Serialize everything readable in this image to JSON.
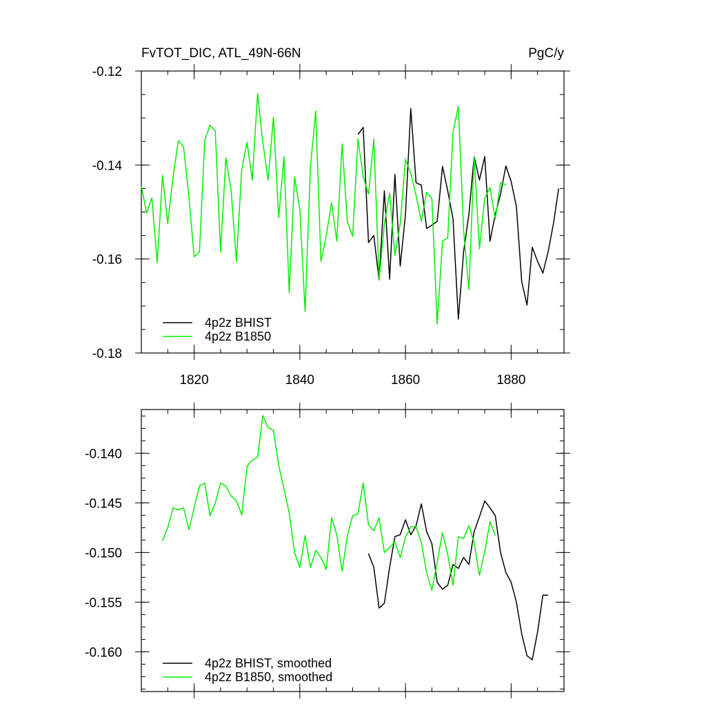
{
  "colors": {
    "bhist": "#000000",
    "b1850": "#00ee00"
  },
  "chart_data": [
    {
      "type": "line",
      "title": "FvTOT_DIC, ATL_49N-66N",
      "units": "PgC/y",
      "xlim": [
        1810,
        1890
      ],
      "ylim": [
        -0.18,
        -0.12
      ],
      "yticks": [
        "-0.12",
        "-0.14",
        "-0.16",
        "-0.18"
      ],
      "ytick_values": [
        -0.12,
        -0.14,
        -0.16,
        -0.18
      ],
      "xticks": [
        "1820",
        "1840",
        "1860",
        "1880"
      ],
      "xtick_values": [
        1820,
        1840,
        1860,
        1880
      ],
      "legend": "bottom-left",
      "series": [
        {
          "name": "4p2z BHIST",
          "color": "#000000",
          "x": [
            1851,
            1852,
            1853,
            1854,
            1855,
            1856,
            1857,
            1858,
            1859,
            1860,
            1861,
            1862,
            1863,
            1864,
            1865,
            1866,
            1867,
            1868,
            1869,
            1870,
            1871,
            1872,
            1873,
            1874,
            1875,
            1876,
            1877,
            1878,
            1879,
            1880,
            1881,
            1882,
            1883,
            1884,
            1885,
            1886,
            1887,
            1888,
            1889
          ],
          "y": [
            -0.1335,
            -0.132,
            -0.1565,
            -0.155,
            -0.1645,
            -0.1455,
            -0.1643,
            -0.142,
            -0.1615,
            -0.1505,
            -0.128,
            -0.1438,
            -0.1443,
            -0.1535,
            -0.1528,
            -0.152,
            -0.1403,
            -0.1455,
            -0.1515,
            -0.1728,
            -0.1585,
            -0.1505,
            -0.1382,
            -0.1432,
            -0.1382,
            -0.1562,
            -0.1505,
            -0.1462,
            -0.1402,
            -0.1435,
            -0.1488,
            -0.1648,
            -0.1698,
            -0.1575,
            -0.1605,
            -0.163,
            -0.1585,
            -0.1525,
            -0.145
          ]
        },
        {
          "name": "4p2z B1850",
          "color": "#00ee00",
          "x": [
            1810,
            1811,
            1812,
            1813,
            1814,
            1815,
            1816,
            1817,
            1818,
            1819,
            1820,
            1821,
            1822,
            1823,
            1824,
            1825,
            1826,
            1827,
            1828,
            1829,
            1830,
            1831,
            1832,
            1833,
            1834,
            1835,
            1836,
            1837,
            1838,
            1839,
            1840,
            1841,
            1842,
            1843,
            1844,
            1845,
            1846,
            1847,
            1848,
            1849,
            1850,
            1851,
            1852,
            1853,
            1854,
            1855,
            1856,
            1857,
            1858,
            1859,
            1860,
            1861,
            1862,
            1863,
            1864,
            1865,
            1866,
            1867,
            1868,
            1869,
            1870,
            1871,
            1872,
            1873,
            1874,
            1875,
            1876,
            1877,
            1878,
            1879
          ],
          "y": [
            -0.1445,
            -0.1502,
            -0.147,
            -0.1608,
            -0.1422,
            -0.1525,
            -0.1425,
            -0.1348,
            -0.1362,
            -0.1468,
            -0.1595,
            -0.1585,
            -0.1348,
            -0.1315,
            -0.1328,
            -0.1585,
            -0.1385,
            -0.1455,
            -0.1605,
            -0.141,
            -0.1352,
            -0.1432,
            -0.1248,
            -0.1352,
            -0.1432,
            -0.1298,
            -0.1512,
            -0.1382,
            -0.1672,
            -0.1425,
            -0.1495,
            -0.1712,
            -0.1405,
            -0.1285,
            -0.1605,
            -0.155,
            -0.148,
            -0.1562,
            -0.1355,
            -0.152,
            -0.1552,
            -0.1345,
            -0.1425,
            -0.1462,
            -0.1345,
            -0.1645,
            -0.1525,
            -0.146,
            -0.1592,
            -0.1525,
            -0.1388,
            -0.1418,
            -0.1465,
            -0.152,
            -0.1458,
            -0.1472,
            -0.1738,
            -0.1562,
            -0.1555,
            -0.133,
            -0.1275,
            -0.1538,
            -0.1665,
            -0.1382,
            -0.1578,
            -0.147,
            -0.1448,
            -0.1515,
            -0.1438,
            -0.1442
          ]
        }
      ]
    },
    {
      "type": "line",
      "xlim": [
        1810,
        1890
      ],
      "ylim": [
        -0.164,
        -0.1356
      ],
      "yticks": [
        "-0.140",
        "-0.145",
        "-0.150",
        "-0.155",
        "-0.160"
      ],
      "ytick_values": [
        -0.14,
        -0.145,
        -0.15,
        -0.155,
        -0.16
      ],
      "xticks": [
        "",
        "",
        "",
        ""
      ],
      "xtick_values": [
        1820,
        1840,
        1860,
        1880
      ],
      "legend": "bottom-left",
      "series": [
        {
          "name": "4p2z BHIST, smoothed",
          "color": "#000000",
          "x": [
            1853,
            1854,
            1855,
            1856,
            1857,
            1858,
            1859,
            1860,
            1861,
            1862,
            1863,
            1864,
            1865,
            1866,
            1867,
            1868,
            1869,
            1870,
            1871,
            1872,
            1873,
            1874,
            1875,
            1876,
            1877,
            1878,
            1879,
            1880,
            1881,
            1882,
            1883,
            1884,
            1885,
            1886,
            1887
          ],
          "y": [
            -0.1501,
            -0.1515,
            -0.1556,
            -0.1551,
            -0.1515,
            -0.1484,
            -0.1482,
            -0.1467,
            -0.1482,
            -0.1473,
            -0.1451,
            -0.1479,
            -0.1491,
            -0.153,
            -0.1537,
            -0.1533,
            -0.1512,
            -0.1516,
            -0.1505,
            -0.1512,
            -0.1479,
            -0.1464,
            -0.1448,
            -0.1455,
            -0.1463,
            -0.15,
            -0.152,
            -0.153,
            -0.155,
            -0.1582,
            -0.1604,
            -0.1608,
            -0.158,
            -0.1543,
            -0.1543
          ]
        },
        {
          "name": "4p2z B1850, smoothed",
          "color": "#00ee00",
          "x": [
            1814,
            1815,
            1816,
            1817,
            1818,
            1819,
            1820,
            1821,
            1822,
            1823,
            1824,
            1825,
            1826,
            1827,
            1828,
            1829,
            1830,
            1831,
            1832,
            1833,
            1834,
            1835,
            1836,
            1837,
            1838,
            1839,
            1840,
            1841,
            1842,
            1843,
            1844,
            1845,
            1846,
            1847,
            1848,
            1849,
            1850,
            1851,
            1852,
            1853,
            1854,
            1855,
            1856,
            1857,
            1858,
            1859,
            1860,
            1861,
            1862,
            1863,
            1864,
            1865,
            1866,
            1867,
            1868,
            1869,
            1870,
            1871,
            1872,
            1873,
            1874,
            1875,
            1876,
            1877
          ],
          "y": [
            -0.1488,
            -0.1475,
            -0.1455,
            -0.1457,
            -0.1455,
            -0.1477,
            -0.1455,
            -0.1433,
            -0.143,
            -0.1463,
            -0.145,
            -0.143,
            -0.1433,
            -0.1443,
            -0.1448,
            -0.1462,
            -0.1413,
            -0.1407,
            -0.1404,
            -0.1362,
            -0.1374,
            -0.1377,
            -0.1412,
            -0.1436,
            -0.146,
            -0.15,
            -0.1515,
            -0.1483,
            -0.1515,
            -0.1498,
            -0.1505,
            -0.1517,
            -0.1465,
            -0.1482,
            -0.1519,
            -0.1483,
            -0.1463,
            -0.1461,
            -0.143,
            -0.1472,
            -0.1478,
            -0.1465,
            -0.15,
            -0.1495,
            -0.1489,
            -0.1505,
            -0.1485,
            -0.1474,
            -0.1474,
            -0.149,
            -0.152,
            -0.1538,
            -0.151,
            -0.148,
            -0.1502,
            -0.1533,
            -0.1484,
            -0.1486,
            -0.1473,
            -0.149,
            -0.1523,
            -0.1499,
            -0.1469,
            -0.1483
          ]
        }
      ]
    }
  ]
}
